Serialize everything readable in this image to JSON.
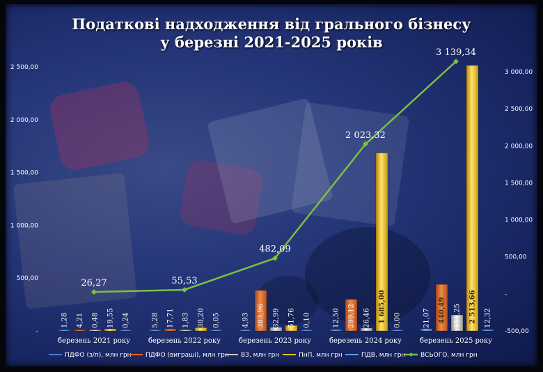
{
  "title_line1": "Податкові надходження від грального бізнесу",
  "title_line2": "у березні 2021-2025 років",
  "chart_data": {
    "type": "bar",
    "categories": [
      "березень 2021 року",
      "березень 2022 року",
      "березень 2023 року",
      "березень 2024 року",
      "березень 2025 року"
    ],
    "series": [
      {
        "name": "ПДФО (з/п), млн грн",
        "color": "#4a7fd4",
        "values": [
          1.28,
          5.28,
          4.93,
          12.5,
          21.07
        ],
        "labels": [
          "1,28",
          "5,28",
          "4,93",
          "12,50",
          "21,07"
        ]
      },
      {
        "name": "ПДФО (виграші), млн грн",
        "color": "#e0692a",
        "values": [
          4.21,
          17.71,
          383.96,
          299.12,
          440.49
        ],
        "labels": [
          "4,21",
          "17,71",
          "383,96",
          "299,12",
          "440,49"
        ]
      },
      {
        "name": "ВЗ, млн грн",
        "color": "#c8c8c8",
        "values": [
          0.48,
          1.83,
          32.99,
          26.46,
          151.25
        ],
        "labels": [
          "0,48",
          "1,83",
          "32,99",
          "26,46",
          "151,25"
        ]
      },
      {
        "name": "ПнП, млн грн",
        "color": "#f2c418",
        "values": [
          19.55,
          30.2,
          51.76,
          1685.0,
          2513.66
        ],
        "labels": [
          "19,55",
          "30,20",
          "51,76",
          "1 685,00",
          "2 513,66"
        ]
      },
      {
        "name": "ПДВ, млн грн",
        "color": "#5e9ee0",
        "values": [
          0.24,
          0.05,
          0.1,
          0.0,
          12.32
        ],
        "labels": [
          "0,24",
          "0,05",
          "0,10",
          "0,00",
          "12,32"
        ]
      }
    ],
    "total": {
      "name": "ВСЬОГО, млн грн",
      "color": "#7ac143",
      "values": [
        26.27,
        55.53,
        482.09,
        2023.32,
        3139.34
      ],
      "labels": [
        "26,27",
        "55,53",
        "482,09",
        "2 023,32",
        "3 139,34"
      ]
    },
    "y_left": {
      "range": [
        0,
        2500
      ],
      "ticks": [
        "-",
        "500,00",
        "1 000,00",
        "1 500,00",
        "2 000,00",
        "2 500,00"
      ]
    },
    "y_right": {
      "range": [
        -500,
        3000
      ],
      "ticks": [
        "-500,00",
        "-",
        "500,00",
        "1 000,00",
        "1 500,00",
        "2 000,00",
        "2 500,00",
        "3 000,00"
      ]
    },
    "legend_position": "bottom",
    "grid": false
  }
}
